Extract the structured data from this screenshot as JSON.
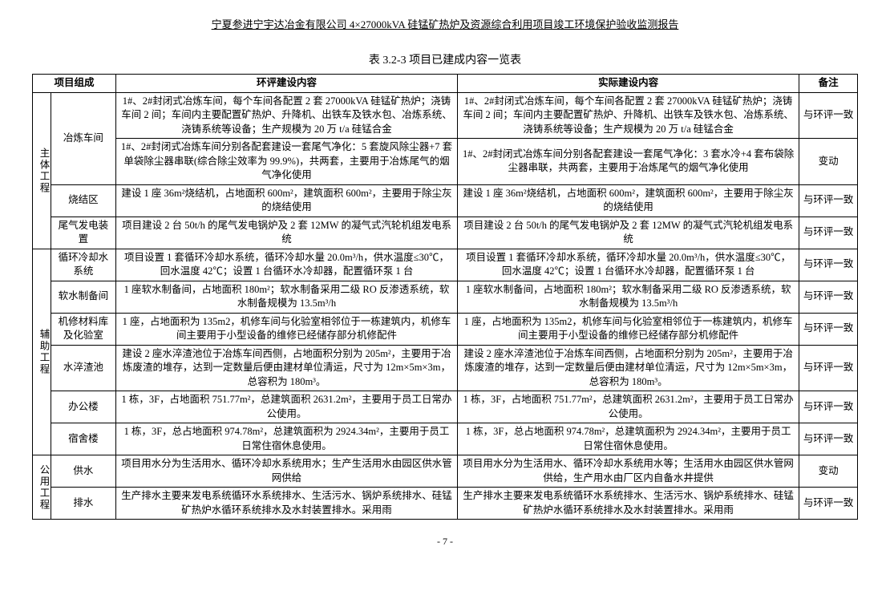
{
  "header_title": "宁夏参进宁宇达冶金有限公司 4×27000kVA 硅锰矿热炉及资源综合利用项目竣工环境保护验收监测报告",
  "table_caption": "表 3.2-3  项目已建成内容一览表",
  "columns": {
    "c1": "项目组成",
    "c2": "",
    "c3": "环评建设内容",
    "c4": "实际建设内容",
    "c5": "备注"
  },
  "groups": {
    "g1": "主体工程",
    "g2": "辅助工程",
    "g3": "公用工程"
  },
  "rows": [
    {
      "sub": "冶炼车间",
      "rowspan_sub": 2,
      "eia": "1#、2#封闭式冶炼车间，每个车间各配置 2 套 27000kVA 硅锰矿热炉；浇铸车间 2 间；车间内主要配置矿热炉、升降机、出铁车及铁水包、冶炼系统、浇铸系统等设备；生产规模为 20 万 t/a 硅锰合金",
      "act": "1#、2#封闭式冶炼车间，每个车间各配置 2 套 27000kVA 硅锰矿热炉；浇铸车间 2 间；车间内主要配置矿热炉、升降机、出铁车及铁水包、冶炼系统、浇铸系统等设备；生产规模为 20 万 t/a 硅锰合金",
      "note": "与环评一致"
    },
    {
      "eia": "1#、2#封闭式冶炼车间分别各配套建设一套尾气净化：5 套旋风除尘器+7 套单袋除尘器串联(综合除尘效率为 99.9%)，共两套，主要用于冶炼尾气的烟气净化使用",
      "act": "1#、2#封闭式冶炼车间分别各配套建设一套尾气净化：3 套水冷+4 套布袋除尘器串联，共两套，主要用于冶炼尾气的烟气净化使用",
      "note": "变动"
    },
    {
      "sub": "烧结区",
      "eia": "建设 1 座 36m²烧结机，占地面积 600m²，建筑面积 600m²，主要用于除尘灰的烧结使用",
      "act": "建设 1 座 36m²烧结机，占地面积 600m²，建筑面积 600m²，主要用于除尘灰的烧结使用",
      "note": "与环评一致"
    },
    {
      "sub": "尾气发电装置",
      "eia": "项目建设 2 台 50t/h 的尾气发电锅炉及 2 套 12MW 的凝气式汽轮机组发电系统",
      "act": "项目建设 2 台 50t/h 的尾气发电锅炉及 2 套 12MW 的凝气式汽轮机组发电系统",
      "note": "与环评一致"
    },
    {
      "sub": "循环冷却水系统",
      "eia": "项目设置 1 套循环冷却水系统，循环冷却水量 20.0m³/h，供水温度≤30℃，回水温度 42℃；设置 1 台循环水冷却器，配置循环泵 1 台",
      "act": "项目设置 1 套循环冷却水系统，循环冷却水量 20.0m³/h，供水温度≤30℃，回水温度 42℃；设置 1 台循环水冷却器，配置循环泵 1 台",
      "note": "与环评一致"
    },
    {
      "sub": "软水制备间",
      "eia": "1 座软水制备间，占地面积 180m²；软水制备采用二级 RO 反渗透系统，软水制备规模为 13.5m³/h",
      "act": "1 座软水制备间，占地面积 180m²；软水制备采用二级 RO 反渗透系统，软水制备规模为 13.5m³/h",
      "note": "与环评一致"
    },
    {
      "sub": "机修材料库及化验室",
      "eia": "1 座，占地面积为 135m2，机修车间与化验室相邻位于一栋建筑内，机修车间主要用于小型设备的维修已经储存部分机修配件",
      "act": "1 座，占地面积为 135m2，机修车间与化验室相邻位于一栋建筑内，机修车间主要用于小型设备的维修已经储存部分机修配件",
      "note": "与环评一致"
    },
    {
      "sub": "水淬渣池",
      "eia": "建设 2 座水淬渣池位于冶炼车间西侧，占地面积分别为 205m²，主要用于冶炼废渣的堆存，达到一定数量后便由建材单位清运，尺寸为 12m×5m×3m，总容积为 180m³。",
      "act": "建设 2 座水淬渣池位于冶炼车间西侧，占地面积分别为 205m²，主要用于冶炼废渣的堆存，达到一定数量后便由建材单位清运，尺寸为 12m×5m×3m，总容积为 180m³。",
      "note": "与环评一致"
    },
    {
      "sub": "办公楼",
      "eia": "1 栋，3F，占地面积 751.77m²，总建筑面积 2631.2m²，主要用于员工日常办公使用。",
      "act": "1 栋，3F，占地面积 751.77m²，总建筑面积 2631.2m²，主要用于员工日常办公使用。",
      "note": "与环评一致"
    },
    {
      "sub": "宿舍楼",
      "eia": "1 栋，3F，总占地面积 974.78m²，总建筑面积为 2924.34m²，主要用于员工日常住宿休息使用。",
      "act": "1 栋，3F，总占地面积 974.78m²，总建筑面积为 2924.34m²，主要用于员工日常住宿休息使用。",
      "note": "与环评一致"
    },
    {
      "sub": "供水",
      "eia": "项目用水分为生活用水、循环冷却水系统用水；生产生活用水由园区供水管网供给",
      "act": "项目用水分为生活用水、循环冷却水系统用水等；生活用水由园区供水管网供给，生产用水由厂区内自备水井提供",
      "note": "变动"
    },
    {
      "sub": "排水",
      "eia": "生产排水主要来发电系统循环水系统排水、生活污水、锅炉系统排水、硅锰矿热炉水循环系统排水及水封装置排水。采用雨",
      "act": "生产排水主要来发电系统循环水系统排水、生活污水、锅炉系统排水、硅锰矿热炉水循环系统排水及水封装置排水。采用雨",
      "note": "与环评一致"
    }
  ],
  "page_number": "- 7 -"
}
